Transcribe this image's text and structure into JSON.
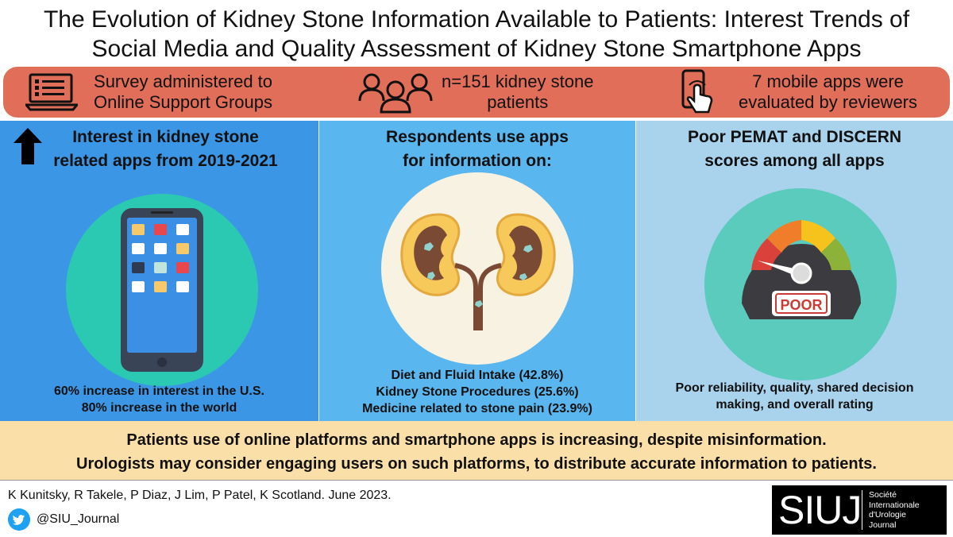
{
  "title": {
    "line1": "The Evolution of Kidney Stone Information Available to Patients: Interest Trends of",
    "line2": "Social Media and Quality Assessment of Kidney Stone Smartphone Apps"
  },
  "banner": {
    "survey": {
      "line1": "Survey administered to",
      "line2": "Online Support Groups",
      "icon": "laptop-checklist-icon"
    },
    "patients": {
      "line1": "n=151 kidney stone",
      "line2": "patients",
      "icon": "people-group-icon"
    },
    "apps": {
      "line1": "7 mobile apps were",
      "line2": "evaluated by reviewers",
      "icon": "phone-tap-icon"
    }
  },
  "panels": [
    {
      "heading_line1": "Interest in kidney stone",
      "heading_line2": "related apps from 2019-2021",
      "icon": "smartphone-apps-icon",
      "footer": [
        "60% increase in interest in the U.S.",
        "80% increase in the world"
      ],
      "colors": {
        "background": "#3b97e6",
        "circle": "#2bc8b2"
      }
    },
    {
      "heading_line1": "Respondents use apps",
      "heading_line2": "for information on:",
      "icon": "kidneys-icon",
      "footer": [
        "Diet and Fluid Intake (42.8%)",
        "Kidney Stone Procedures (25.6%)",
        "Medicine related to stone pain (23.9%)"
      ],
      "colors": {
        "background": "#5ab6ee",
        "circle": "#f8f2e2"
      }
    },
    {
      "heading_line1": "Poor PEMAT and DISCERN",
      "heading_line2": "scores among all apps",
      "icon": "speedometer-gauge-icon",
      "gauge_label": "POOR",
      "footer": [
        "Poor reliability, quality, shared decision",
        "making, and overall rating"
      ],
      "colors": {
        "background": "#a9d2ec",
        "circle": "#5acbbc"
      }
    }
  ],
  "conclusion": {
    "line1": "Patients use of online platforms and smartphone apps is increasing, despite misinformation.",
    "line2": "Urologists may consider engaging users on such platforms, to distribute accurate information to patients."
  },
  "footer": {
    "authors": "K Kunitsky, R Takele, P Diaz, J Lim, P Patel, K Scotland. June 2023.",
    "twitter_handle": "@SIU_Journal",
    "logo_mark": "SIUJ",
    "logo_text": [
      "Société",
      "Internationale",
      "d'Urologie",
      "Journal"
    ]
  }
}
